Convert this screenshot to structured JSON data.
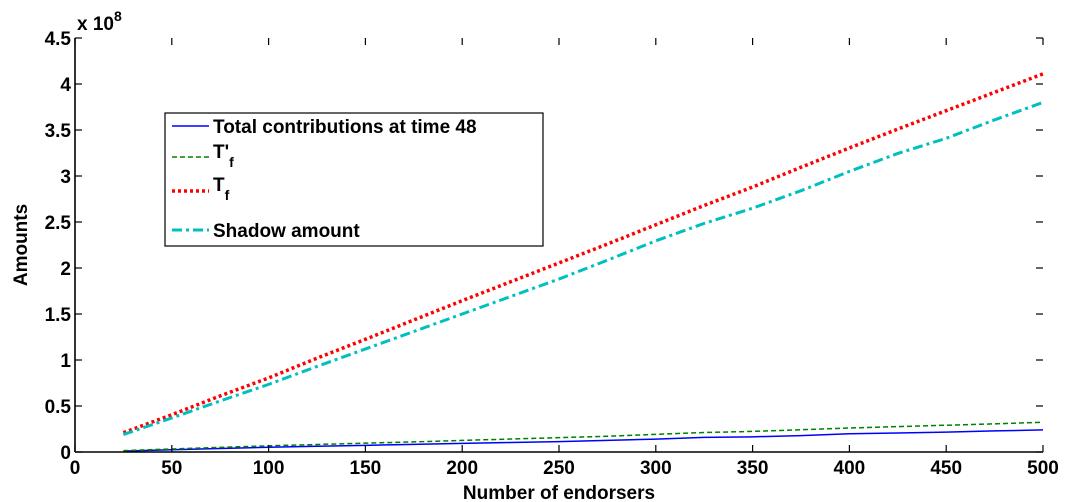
{
  "chart_data": {
    "type": "line",
    "xlabel": "Number of endorsers",
    "ylabel": "Amounts",
    "y_exponent_label": "x 10",
    "y_exponent_power": "8",
    "xlim": [
      0,
      500
    ],
    "ylim": [
      0,
      450000000
    ],
    "x_ticks": [
      0,
      50,
      100,
      150,
      200,
      250,
      300,
      350,
      400,
      450,
      500
    ],
    "x_tick_labels": [
      "0",
      "50",
      "100",
      "150",
      "200",
      "250",
      "300",
      "350",
      "400",
      "450",
      "500"
    ],
    "y_ticks": [
      0,
      50000000,
      100000000,
      150000000,
      200000000,
      250000000,
      300000000,
      350000000,
      400000000,
      450000000
    ],
    "y_tick_labels": [
      "0",
      "0.5",
      "1",
      "1.5",
      "2",
      "2.5",
      "3",
      "3.5",
      "4",
      "4.5"
    ],
    "grid": false,
    "legend_position": "upper-left",
    "x": [
      25,
      50,
      75,
      100,
      125,
      150,
      175,
      200,
      225,
      250,
      275,
      300,
      325,
      350,
      375,
      400,
      425,
      450,
      475,
      500
    ],
    "series": [
      {
        "name": "Total contributions at time 48",
        "color": "#0000ff",
        "style": "solid",
        "values": [
          1000000,
          2500000,
          3800000,
          5200000,
          6300000,
          7200000,
          8300000,
          9400000,
          10300000,
          11300000,
          12700000,
          14000000,
          15900000,
          16500000,
          17800000,
          19800000,
          20700000,
          21600000,
          22900000,
          24000000
        ]
      },
      {
        "name": "T'",
        "name_subscript": "f",
        "color": "#008000",
        "style": "dashed",
        "values": [
          1500000,
          3300000,
          5000000,
          6700000,
          8200000,
          9600000,
          11000000,
          12600000,
          14100000,
          15600000,
          17100000,
          19200000,
          21200000,
          22400000,
          24200000,
          26100000,
          27600000,
          29100000,
          30600000,
          32300000
        ]
      },
      {
        "name": "T",
        "name_subscript": "f",
        "color": "#ff0000",
        "style": "dotted",
        "values": [
          21000000,
          40500000,
          61000000,
          80500000,
          102000000,
          122500000,
          143500000,
          164500000,
          185000000,
          205500000,
          226000000,
          247000000,
          268000000,
          288000000,
          309500000,
          330500000,
          351000000,
          371000000,
          391000000,
          411000000
        ]
      },
      {
        "name": "Shadow amount",
        "color": "#00bfbf",
        "style": "dashdot",
        "values": [
          19000000,
          37000000,
          55500000,
          73500000,
          93000000,
          112000000,
          131000000,
          150000000,
          169000000,
          188000000,
          208500000,
          229500000,
          248500000,
          265000000,
          284000000,
          305000000,
          324500000,
          341000000,
          361000000,
          380000000
        ]
      }
    ]
  }
}
